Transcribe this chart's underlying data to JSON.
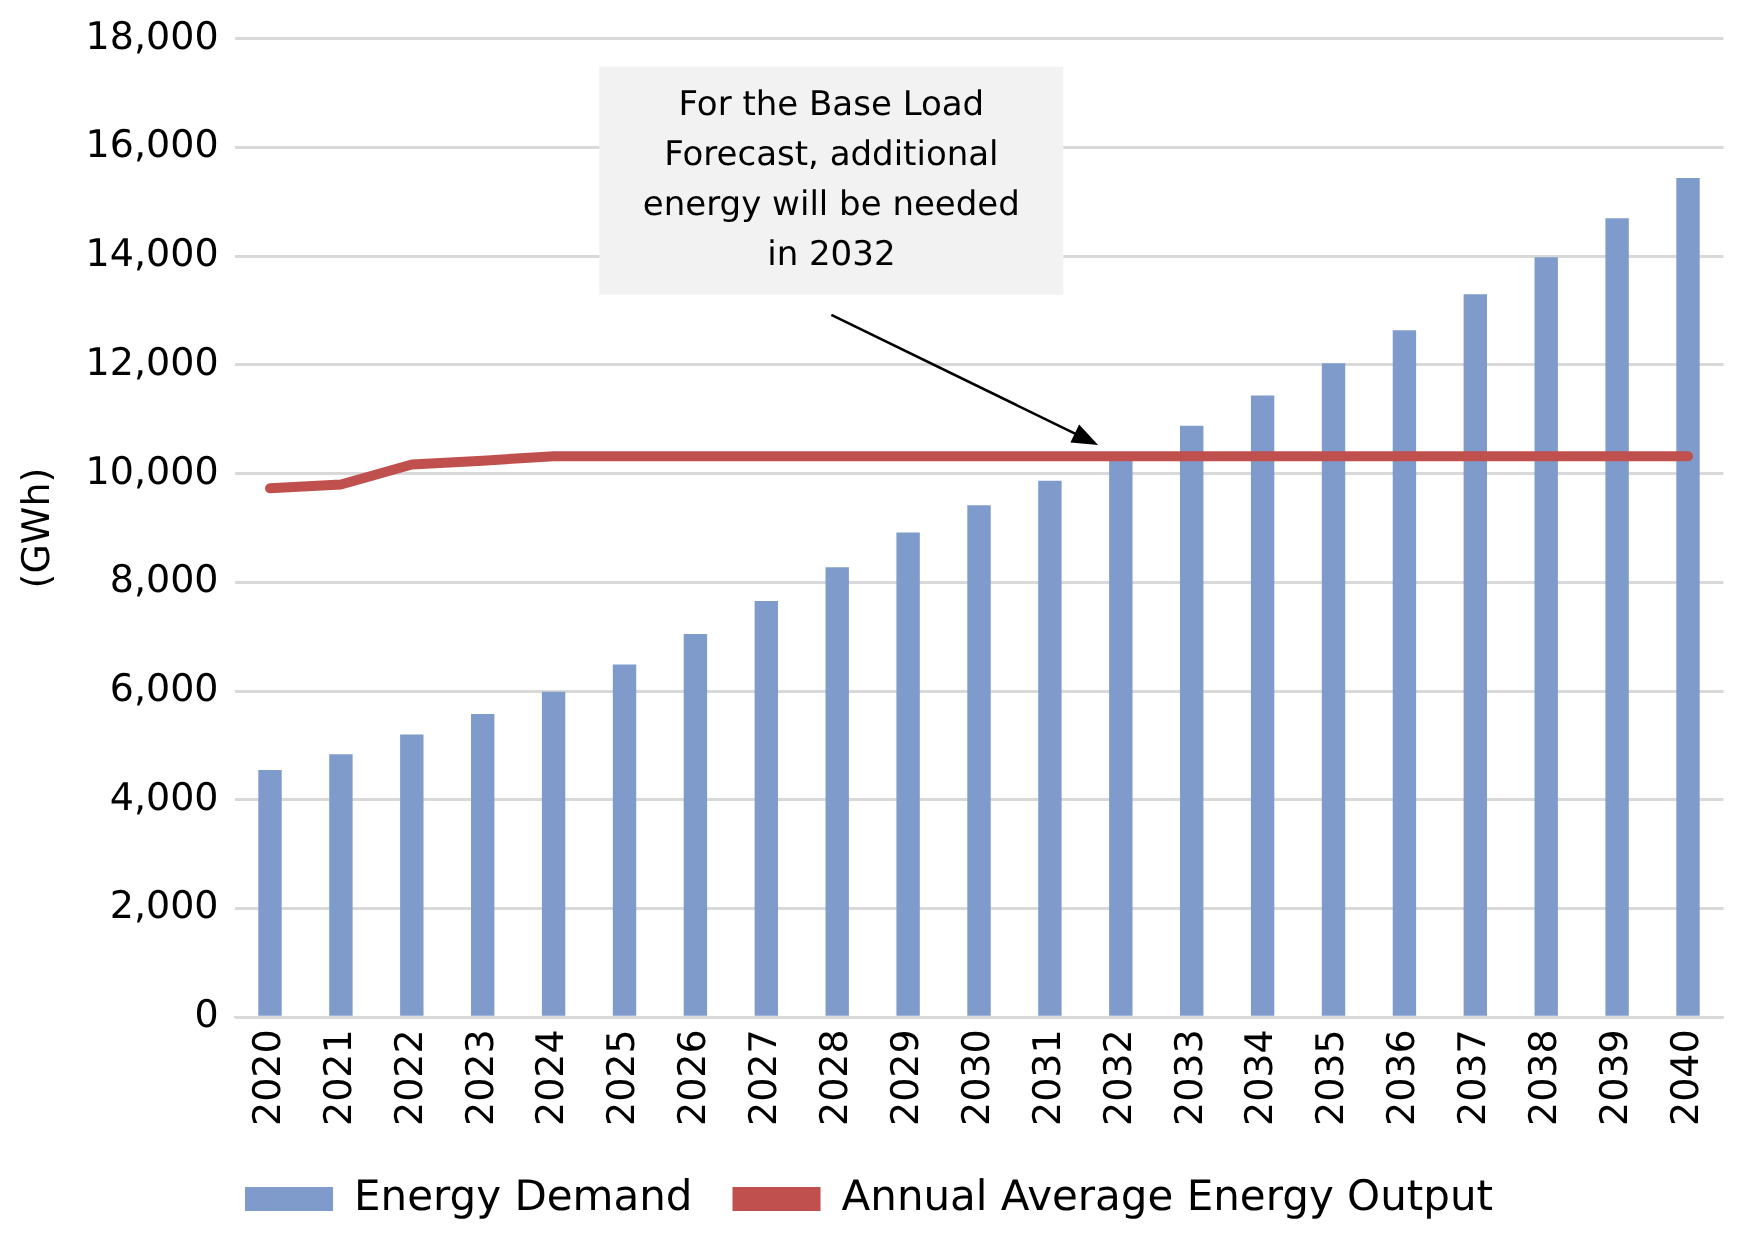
{
  "chart_data": {
    "type": "bar",
    "ylabel": "(GWh)",
    "categories": [
      "2020",
      "2021",
      "2022",
      "2023",
      "2024",
      "2025",
      "2026",
      "2027",
      "2028",
      "2029",
      "2030",
      "2031",
      "2032",
      "2033",
      "2034",
      "2035",
      "2036",
      "2037",
      "2038",
      "2039",
      "2040"
    ],
    "series": [
      {
        "name": "Energy Demand",
        "color": "#7f9bcb",
        "values": [
          4550,
          4840,
          5200,
          5580,
          5990,
          6490,
          7050,
          7660,
          8280,
          8920,
          9420,
          9870,
          10270,
          10880,
          11440,
          12030,
          12640,
          13300,
          13980,
          14700,
          15440
        ]
      },
      {
        "name": "Annual Average Energy Output",
        "type": "line",
        "color": "#c0504d",
        "values": [
          9730,
          9800,
          10170,
          10240,
          10320,
          10320,
          10320,
          10320,
          10320,
          10320,
          10320,
          10320,
          10320,
          10320,
          10320,
          10320,
          10320,
          10320,
          10320,
          10320,
          10320
        ]
      }
    ],
    "ylim": [
      0,
      18000
    ],
    "yticks": [
      0,
      {
        "value": 2000,
        "label": "2,000"
      },
      {
        "value": 4000,
        "label": "4,000"
      },
      {
        "value": 6000,
        "label": "6,000"
      },
      {
        "value": 8000,
        "label": "8,000"
      },
      {
        "value": 10000,
        "label": "10,000"
      },
      {
        "value": 12000,
        "label": "12,000"
      },
      {
        "value": 14000,
        "label": "14,000"
      },
      {
        "value": 16000,
        "label": "16,000"
      },
      {
        "value": 18000,
        "label": "18,000"
      }
    ],
    "grid": "y",
    "legend": "bottom",
    "marker": "none",
    "annotations": [
      "For the Base Load Forecast, additional energy will be needed in 2032"
    ]
  }
}
